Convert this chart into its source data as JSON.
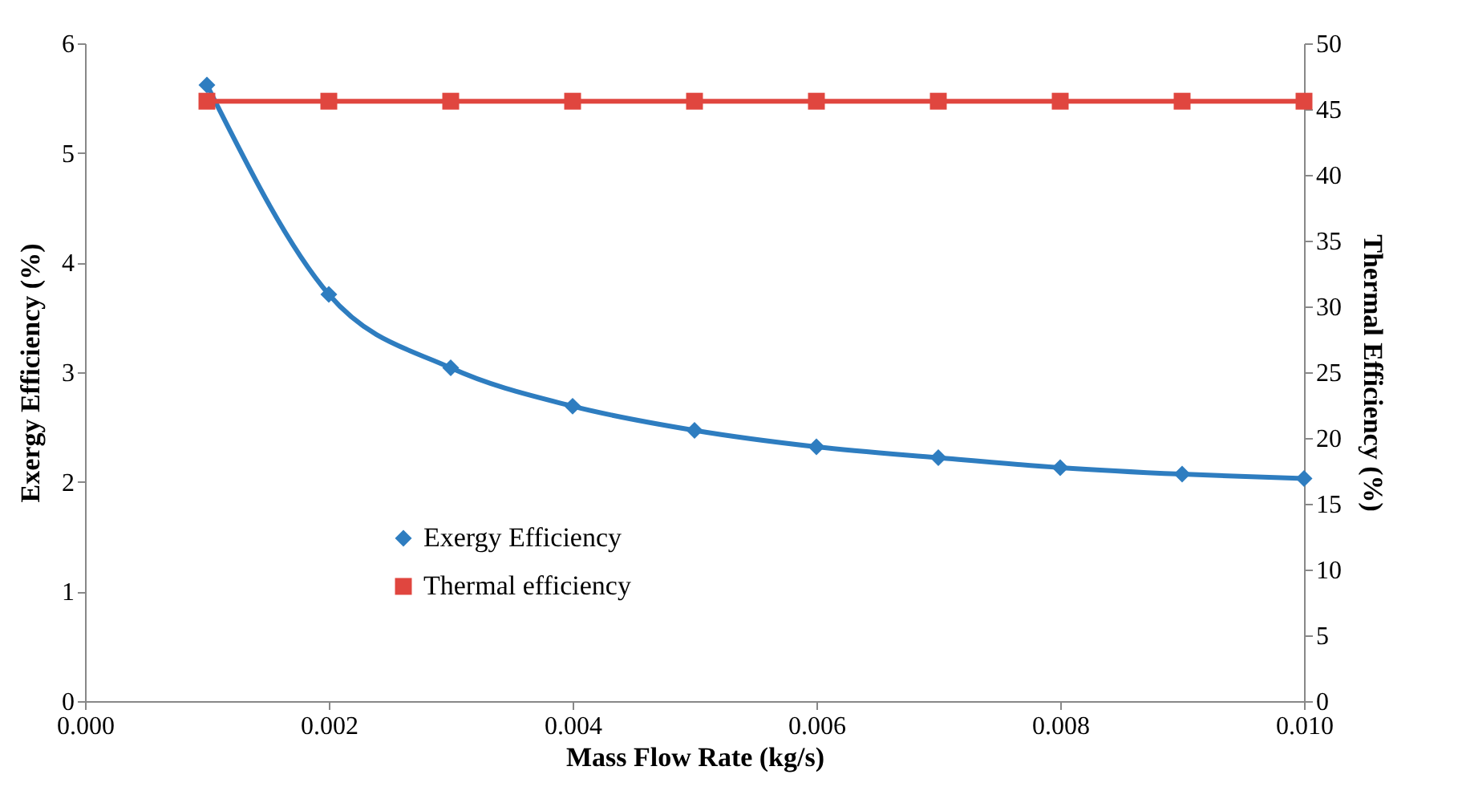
{
  "chart_data": {
    "type": "line",
    "xlabel": "Mass Flow Rate (kg/s)",
    "ylabel": "Exergy Efficiency (%)",
    "y2label": "Thermal Efficiency (%)",
    "x": [
      0.001,
      0.002,
      0.003,
      0.004,
      0.005,
      0.006,
      0.007,
      0.008,
      0.009,
      0.01
    ],
    "series": [
      {
        "name": "Exergy Efficiency",
        "color": "#2e7dc0",
        "marker": "diamond",
        "values": [
          5.62,
          3.71,
          3.04,
          2.69,
          2.47,
          2.32,
          2.22,
          2.13,
          2.07,
          2.03
        ]
      },
      {
        "name": "Thermal efficiency",
        "color": "#e0463f",
        "marker": "square",
        "axis": "y2",
        "values": [
          45.6,
          45.6,
          45.6,
          45.6,
          45.6,
          45.6,
          45.6,
          45.6,
          45.6,
          45.6
        ]
      }
    ],
    "xlim": [
      0,
      0.01
    ],
    "xticks": [
      {
        "value": 0,
        "label": "0.000"
      },
      {
        "value": 0.002,
        "label": "0.002"
      },
      {
        "value": 0.004,
        "label": "0.004"
      },
      {
        "value": 0.006,
        "label": "0.006"
      },
      {
        "value": 0.008,
        "label": "0.008"
      },
      {
        "value": 0.01,
        "label": "0.010"
      }
    ],
    "ylim": [
      0,
      6
    ],
    "yticks": [
      0,
      1,
      2,
      3,
      4,
      5,
      6
    ],
    "y2lim": [
      0,
      50
    ],
    "y2ticks": [
      0,
      5,
      10,
      15,
      20,
      25,
      30,
      35,
      40,
      45,
      50
    ],
    "grid": false,
    "legend": "bottom left",
    "line_style": "solid"
  }
}
